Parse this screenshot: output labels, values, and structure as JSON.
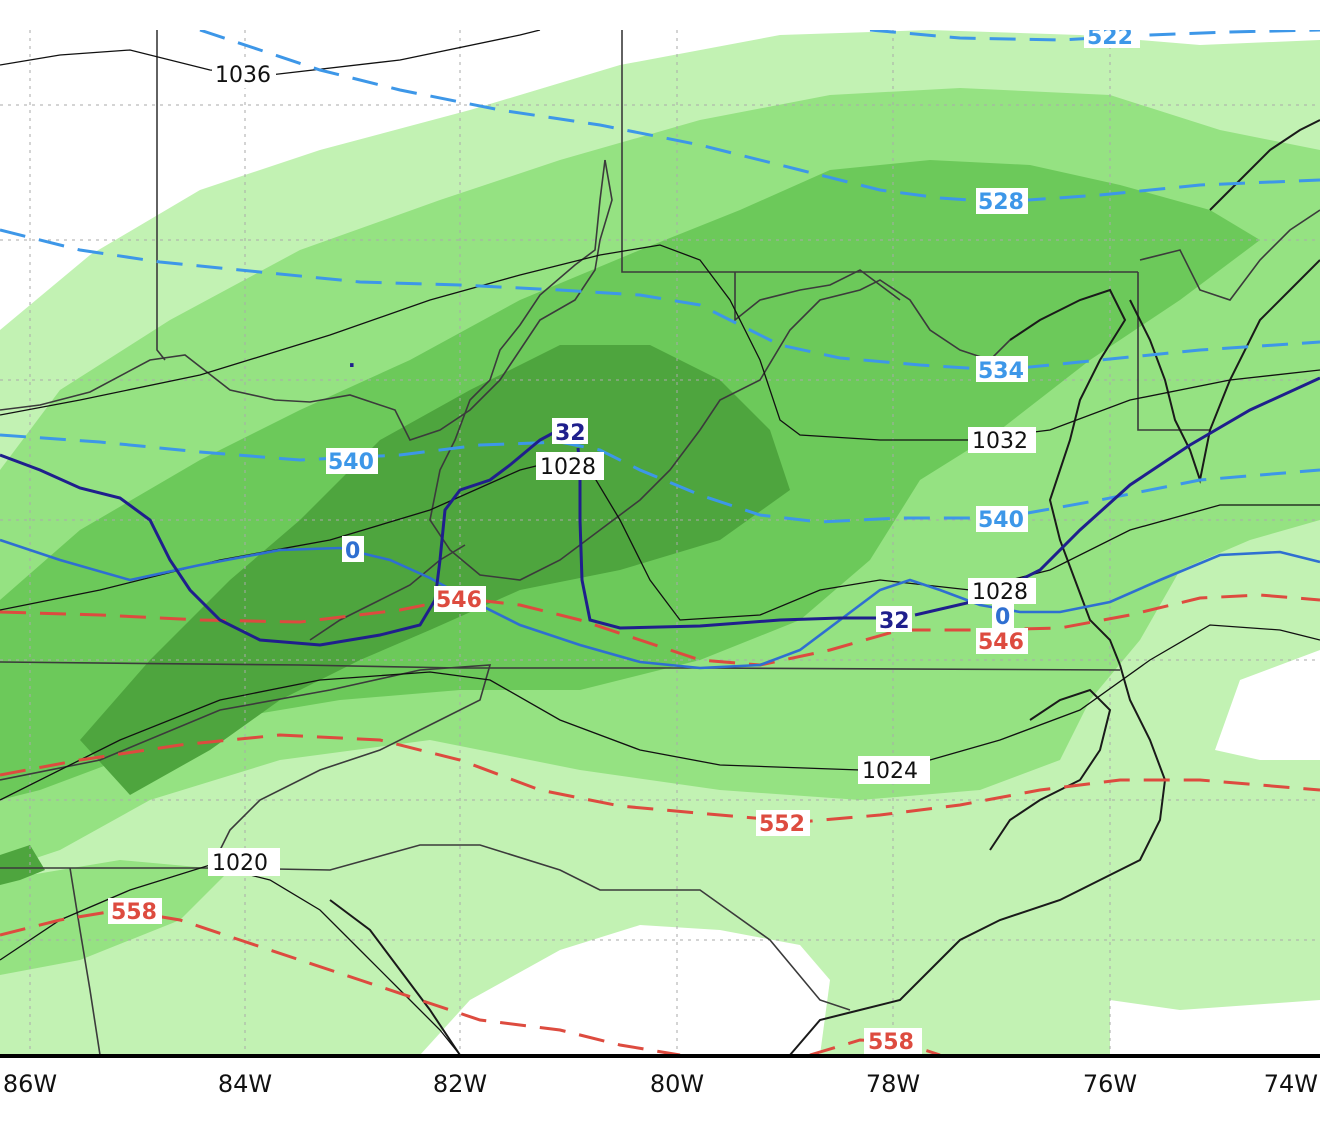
{
  "map": {
    "colors": {
      "precip_light": "#c2f2b3",
      "precip_mid": "#95e282",
      "precip_strong": "#6cc95a",
      "precip_heavy": "#4ea53e",
      "thickness_cold": "#3d97e8",
      "thickness_warm": "#dd4b3f",
      "freeze_850": "#1f1f8c",
      "temp_0c": "#2f6fd1",
      "isobar": "#111111",
      "border": "#3b3b3b",
      "coast": "#1a1a1a",
      "grid": "#9a9a9a"
    },
    "x_axis_ticks": [
      "86W",
      "84W",
      "82W",
      "80W",
      "78W",
      "76W",
      "74W"
    ],
    "isobar_labels": [
      "1036",
      "1032",
      "1028",
      "1028",
      "1024",
      "1020"
    ],
    "thickness_labels_cold": [
      "522",
      "528",
      "534",
      "540",
      "540"
    ],
    "thickness_labels_warm": [
      "546",
      "546",
      "552",
      "558",
      "558"
    ],
    "freeze_labels": [
      "32",
      "32"
    ],
    "zero_labels": [
      "0",
      "0"
    ],
    "marker_glyph": "·"
  }
}
